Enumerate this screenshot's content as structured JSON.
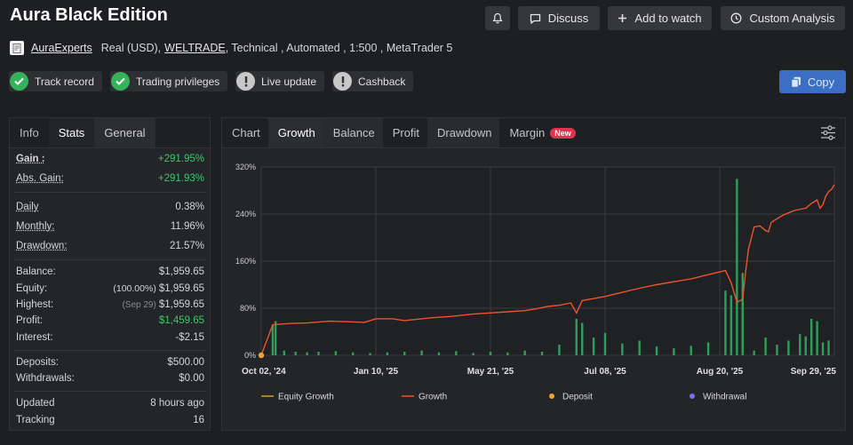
{
  "header": {
    "title": "Aura Black Edition",
    "buttons": {
      "discuss": "Discuss",
      "add_to_watch": "Add to watch",
      "custom_analysis": "Custom Analysis"
    }
  },
  "account": {
    "owner": "AuraExperts",
    "type": "Real (USD),",
    "broker": "WELTRADE",
    "details": ", Technical , Automated , 1:500 , MetaTrader 5"
  },
  "badges": [
    "Track record",
    "Trading privileges",
    "Live update",
    "Cashback"
  ],
  "copy_label": "Copy",
  "left_tabs": [
    "Info",
    "Stats",
    "General"
  ],
  "stats": {
    "gain": {
      "label": "Gain :",
      "value": "+291.95%"
    },
    "abs_gain": {
      "label": "Abs. Gain:",
      "value": "+291.93%"
    },
    "daily": {
      "label": "Daily",
      "value": "0.38%"
    },
    "monthly": {
      "label": "Monthly:",
      "value": "11.96%"
    },
    "drawdown": {
      "label": "Drawdown:",
      "value": "21.57%"
    },
    "balance": {
      "label": "Balance:",
      "value": "$1,959.65"
    },
    "equity": {
      "label": "Equity:",
      "prefix": "(100.00%)",
      "value": "$1,959.65"
    },
    "highest": {
      "label": "Highest:",
      "prefix": "(Sep 29)",
      "value": "$1,959.65"
    },
    "profit": {
      "label": "Profit:",
      "value": "$1,459.65"
    },
    "interest": {
      "label": "Interest:",
      "value": "-$2.15"
    },
    "deposits": {
      "label": "Deposits:",
      "value": "$500.00"
    },
    "withdrawals": {
      "label": "Withdrawals:",
      "value": "$0.00"
    },
    "updated": {
      "label": "Updated",
      "value": "8 hours ago"
    },
    "tracking": {
      "label": "Tracking",
      "value": "16"
    }
  },
  "chart_tabs": [
    "Chart",
    "Growth",
    "Balance",
    "Profit",
    "Drawdown",
    "Margin"
  ],
  "new_badge": "New",
  "colors": {
    "growth_line": "#e8552f",
    "equity_line": "#c9a227",
    "deposit_dot": "#f0a035",
    "withdrawal_dot": "#7c6cf0",
    "bars": "#2e9e5a",
    "positive": "#3ec46d",
    "copy_button": "#3a6fc4"
  },
  "chart_data": {
    "type": "line",
    "x_ticks": [
      "Oct 02, '24",
      "Jan 10, '25",
      "May 21, '25",
      "Jul 08, '25",
      "Aug 20, '25",
      "Sep 29, '25"
    ],
    "y_ticks": [
      "0%",
      "80%",
      "160%",
      "240%",
      "320%"
    ],
    "ylim": [
      0,
      320
    ],
    "grid": true,
    "legend_position": "bottom",
    "legend": [
      "Equity Growth",
      "Growth",
      "Deposit",
      "Withdrawal"
    ],
    "series": [
      {
        "name": "Growth",
        "points": [
          [
            0,
            0
          ],
          [
            0.02,
            52
          ],
          [
            0.05,
            54
          ],
          [
            0.08,
            55
          ],
          [
            0.12,
            58
          ],
          [
            0.15,
            57
          ],
          [
            0.18,
            56
          ],
          [
            0.2,
            62
          ],
          [
            0.23,
            62
          ],
          [
            0.25,
            59
          ],
          [
            0.27,
            61
          ],
          [
            0.3,
            64
          ],
          [
            0.33,
            66
          ],
          [
            0.37,
            70
          ],
          [
            0.4,
            72
          ],
          [
            0.43,
            74
          ],
          [
            0.46,
            76
          ],
          [
            0.48,
            79
          ],
          [
            0.5,
            83
          ],
          [
            0.52,
            85
          ],
          [
            0.54,
            89
          ],
          [
            0.55,
            72
          ],
          [
            0.56,
            93
          ],
          [
            0.6,
            100
          ],
          [
            0.63,
            107
          ],
          [
            0.66,
            114
          ],
          [
            0.69,
            120
          ],
          [
            0.72,
            125
          ],
          [
            0.75,
            130
          ],
          [
            0.78,
            137
          ],
          [
            0.81,
            144
          ],
          [
            0.82,
            123
          ],
          [
            0.83,
            90
          ],
          [
            0.84,
            95
          ],
          [
            0.845,
            140
          ],
          [
            0.85,
            180
          ],
          [
            0.86,
            218
          ],
          [
            0.87,
            220
          ],
          [
            0.88,
            212
          ],
          [
            0.885,
            210
          ],
          [
            0.89,
            226
          ],
          [
            0.91,
            238
          ],
          [
            0.93,
            246
          ],
          [
            0.95,
            250
          ],
          [
            0.96,
            258
          ],
          [
            0.97,
            264
          ],
          [
            0.975,
            250
          ],
          [
            0.98,
            256
          ],
          [
            0.985,
            270
          ],
          [
            0.99,
            278
          ],
          [
            0.995,
            282
          ],
          [
            1,
            290
          ]
        ]
      },
      {
        "name": "Deposit",
        "points": [
          [
            0,
            0
          ]
        ]
      }
    ],
    "bars": [
      [
        0.02,
        52
      ],
      [
        0.025,
        58
      ],
      [
        0.04,
        8
      ],
      [
        0.06,
        6
      ],
      [
        0.08,
        5
      ],
      [
        0.1,
        6
      ],
      [
        0.13,
        7
      ],
      [
        0.16,
        5
      ],
      [
        0.19,
        4
      ],
      [
        0.22,
        5
      ],
      [
        0.25,
        6
      ],
      [
        0.28,
        8
      ],
      [
        0.31,
        5
      ],
      [
        0.34,
        7
      ],
      [
        0.37,
        4
      ],
      [
        0.4,
        6
      ],
      [
        0.43,
        5
      ],
      [
        0.46,
        8
      ],
      [
        0.49,
        6
      ],
      [
        0.52,
        18
      ],
      [
        0.55,
        62
      ],
      [
        0.56,
        55
      ],
      [
        0.58,
        30
      ],
      [
        0.6,
        38
      ],
      [
        0.63,
        20
      ],
      [
        0.66,
        25
      ],
      [
        0.69,
        15
      ],
      [
        0.72,
        12
      ],
      [
        0.75,
        16
      ],
      [
        0.78,
        22
      ],
      [
        0.81,
        110
      ],
      [
        0.82,
        102
      ],
      [
        0.83,
        300
      ],
      [
        0.84,
        140
      ],
      [
        0.86,
        8
      ],
      [
        0.88,
        30
      ],
      [
        0.9,
        18
      ],
      [
        0.92,
        25
      ],
      [
        0.94,
        36
      ],
      [
        0.95,
        32
      ],
      [
        0.96,
        62
      ],
      [
        0.97,
        58
      ],
      [
        0.98,
        22
      ],
      [
        0.99,
        25
      ]
    ]
  }
}
